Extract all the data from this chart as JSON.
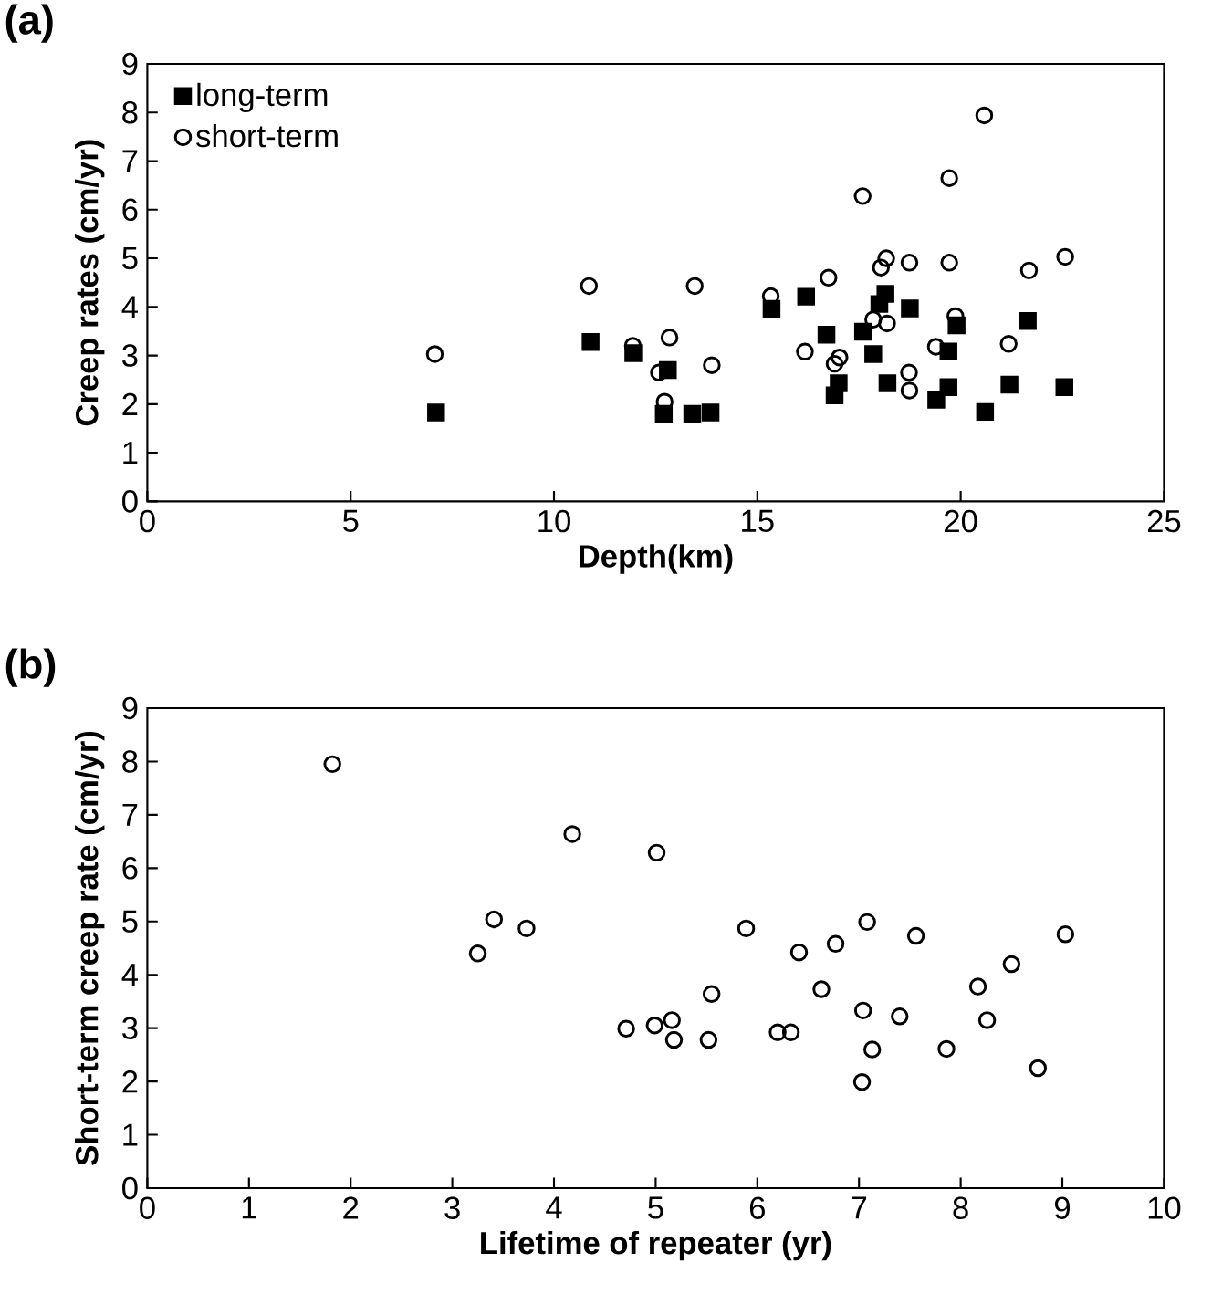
{
  "chart_data": [
    {
      "type": "scatter",
      "title": "(a)",
      "xlabel": "Depth(km)",
      "ylabel": "Creep rates (cm/yr)",
      "xlim": [
        0,
        25
      ],
      "xticks": [
        0,
        5,
        10,
        15,
        20,
        25
      ],
      "ylim": [
        0,
        9
      ],
      "yticks": [
        0,
        1,
        2,
        3,
        4,
        5,
        6,
        7,
        8,
        9
      ],
      "grid": false,
      "legend": "top left",
      "series": [
        {
          "name": "long-term",
          "color": "#000000",
          "marker": "square",
          "x": [
            7.1,
            10.9,
            11.95,
            12.8,
            12.7,
            13.4,
            13.85,
            15.35,
            16.2,
            16.7,
            17.0,
            16.9,
            17.6,
            17.85,
            18.0,
            18.15,
            18.75,
            18.2,
            19.7,
            19.9,
            19.7,
            19.4,
            20.6,
            21.2,
            21.65,
            22.55
          ],
          "values": [
            1.83,
            3.28,
            3.05,
            2.7,
            1.8,
            1.8,
            1.83,
            3.96,
            4.21,
            3.43,
            2.43,
            2.18,
            3.49,
            3.03,
            4.06,
            4.27,
            3.97,
            2.43,
            3.08,
            3.62,
            2.35,
            2.09,
            1.84,
            2.4,
            3.71,
            2.35
          ]
        },
        {
          "name": "short-term",
          "color": "#000000",
          "marker": "circle",
          "x": [
            7.07,
            10.86,
            11.94,
            12.84,
            12.58,
            12.72,
            13.46,
            13.88,
            15.33,
            16.17,
            16.75,
            16.9,
            17.02,
            17.59,
            17.85,
            18.19,
            18.04,
            18.17,
            18.74,
            18.73,
            18.74,
            19.39,
            19.72,
            19.72,
            19.87,
            20.58,
            21.18,
            21.68,
            22.57
          ],
          "values": [
            3.03,
            4.43,
            3.2,
            3.37,
            2.65,
            2.05,
            4.43,
            2.8,
            4.22,
            3.08,
            4.6,
            2.83,
            2.96,
            6.28,
            3.74,
            3.66,
            4.81,
            5.0,
            4.91,
            2.65,
            2.28,
            3.18,
            6.65,
            4.91,
            3.81,
            7.94,
            3.24,
            4.75,
            5.03
          ]
        }
      ]
    },
    {
      "type": "scatter",
      "title": "(b)",
      "xlabel": "Lifetime of repeater (yr)",
      "ylabel": "Short-term creep rate (cm/yr)",
      "xlim": [
        0,
        10
      ],
      "xticks": [
        0,
        1,
        2,
        3,
        4,
        5,
        6,
        7,
        8,
        9,
        10
      ],
      "ylim": [
        0,
        9
      ],
      "yticks": [
        0,
        1,
        2,
        3,
        4,
        5,
        6,
        7,
        8,
        9
      ],
      "grid": false,
      "legend": false,
      "series": [
        {
          "color": "#000000",
          "marker": "circle",
          "x": [
            1.82,
            3.25,
            3.41,
            3.73,
            4.18,
            4.71,
            4.99,
            5.01,
            5.16,
            5.18,
            5.52,
            5.55,
            5.89,
            6.2,
            6.33,
            6.41,
            6.63,
            6.77,
            7.08,
            7.04,
            7.13,
            7.03,
            7.56,
            7.4,
            7.86,
            8.17,
            8.26,
            8.5,
            8.76,
            9.03
          ],
          "values": [
            7.95,
            4.4,
            5.04,
            4.87,
            6.64,
            2.99,
            3.05,
            6.29,
            3.15,
            2.78,
            2.78,
            3.64,
            4.87,
            2.92,
            2.92,
            4.42,
            3.73,
            4.58,
            4.99,
            3.33,
            2.6,
            1.99,
            4.73,
            3.22,
            2.61,
            3.78,
            3.15,
            4.2,
            2.25,
            4.76
          ]
        }
      ]
    }
  ]
}
